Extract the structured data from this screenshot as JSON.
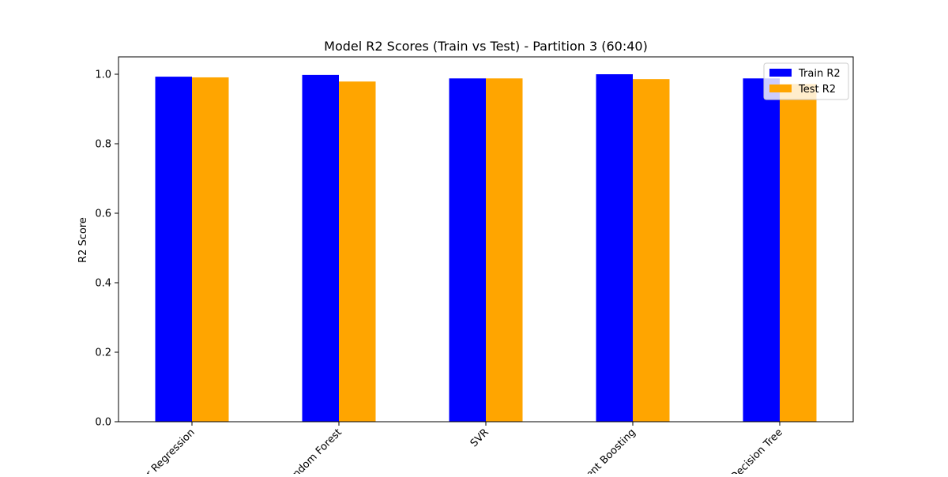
{
  "chart_data": {
    "type": "bar",
    "title": "Model R2 Scores (Train vs Test) - Partition 3 (60:40)",
    "xlabel": "",
    "ylabel": "R2 Score",
    "ylim": [
      0,
      1.05
    ],
    "yticks": [
      0.0,
      0.2,
      0.4,
      0.6,
      0.8,
      1.0
    ],
    "ytick_labels": [
      "0.0",
      "0.2",
      "0.4",
      "0.6",
      "0.8",
      "1.0"
    ],
    "categories": [
      "Linear Regression",
      "Random Forest",
      "SVR",
      "Gradient Boosting",
      "Decision Tree"
    ],
    "tick_rotation_deg": -45,
    "grid": false,
    "legend_position": "top-right",
    "series": [
      {
        "name": "Train R2",
        "color": "#0000ff",
        "values": [
          0.993,
          0.998,
          0.988,
          1.0,
          0.988
        ]
      },
      {
        "name": "Test R2",
        "color": "#ffa500",
        "values": [
          0.991,
          0.979,
          0.988,
          0.986,
          0.972
        ]
      }
    ]
  }
}
